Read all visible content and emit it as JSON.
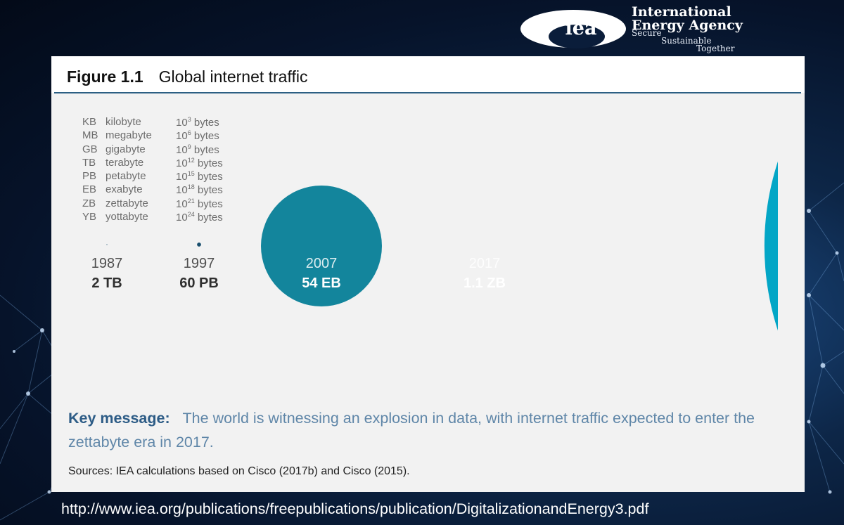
{
  "logo": {
    "mark": "iea",
    "line1": "International",
    "line2": "Energy Agency",
    "tag1": "Secure",
    "tag2": "Sustainable",
    "tag3": "Together"
  },
  "figure": {
    "number": "Figure 1.1",
    "title": "Global internet traffic"
  },
  "units": [
    {
      "abbr": "KB",
      "name": "kilobyte",
      "base": "10",
      "exp": "3",
      "suffix": "bytes"
    },
    {
      "abbr": "MB",
      "name": "megabyte",
      "base": "10",
      "exp": "6",
      "suffix": "bytes"
    },
    {
      "abbr": "GB",
      "name": "gigabyte",
      "base": "10",
      "exp": "9",
      "suffix": "bytes"
    },
    {
      "abbr": "TB",
      "name": "terabyte",
      "base": "10",
      "exp": "12",
      "suffix": "bytes"
    },
    {
      "abbr": "PB",
      "name": "petabyte",
      "base": "10",
      "exp": "15",
      "suffix": "bytes"
    },
    {
      "abbr": "EB",
      "name": "exabyte",
      "base": "10",
      "exp": "18",
      "suffix": "bytes"
    },
    {
      "abbr": "ZB",
      "name": "zettabyte",
      "base": "10",
      "exp": "21",
      "suffix": "bytes"
    },
    {
      "abbr": "YB",
      "name": "yottabyte",
      "base": "10",
      "exp": "24",
      "suffix": "bytes"
    }
  ],
  "chart_data": {
    "type": "bubble",
    "title": "Global internet traffic",
    "points": [
      {
        "year": "1987",
        "label": "2 TB",
        "value_bytes": 2000000000000.0
      },
      {
        "year": "1997",
        "label": "60 PB",
        "value_bytes": 6e+16
      },
      {
        "year": "2007",
        "label": "54 EB",
        "value_bytes": 5.4e+19
      },
      {
        "year": "2017",
        "label": "1.1 ZB",
        "value_bytes": 1.1e+21
      }
    ],
    "colors": {
      "small": "#1a4f6e",
      "2007": "#13859c",
      "2017": "#03a6c6",
      "year_text": "#4f4f4f",
      "value_text": "#2f2f2f",
      "on_fill_text": "#ffffff"
    }
  },
  "key_message": {
    "label": "Key message",
    "text": "The world is witnessing an explosion in data, with internet traffic expected to enter the zettabyte era in 2017."
  },
  "sources": "Sources: IEA calculations based on Cisco (2017b) and Cisco (2015).",
  "url": "http://www.iea.org/publications/freepublications/publication/DigitalizationandEnergy3.pdf"
}
